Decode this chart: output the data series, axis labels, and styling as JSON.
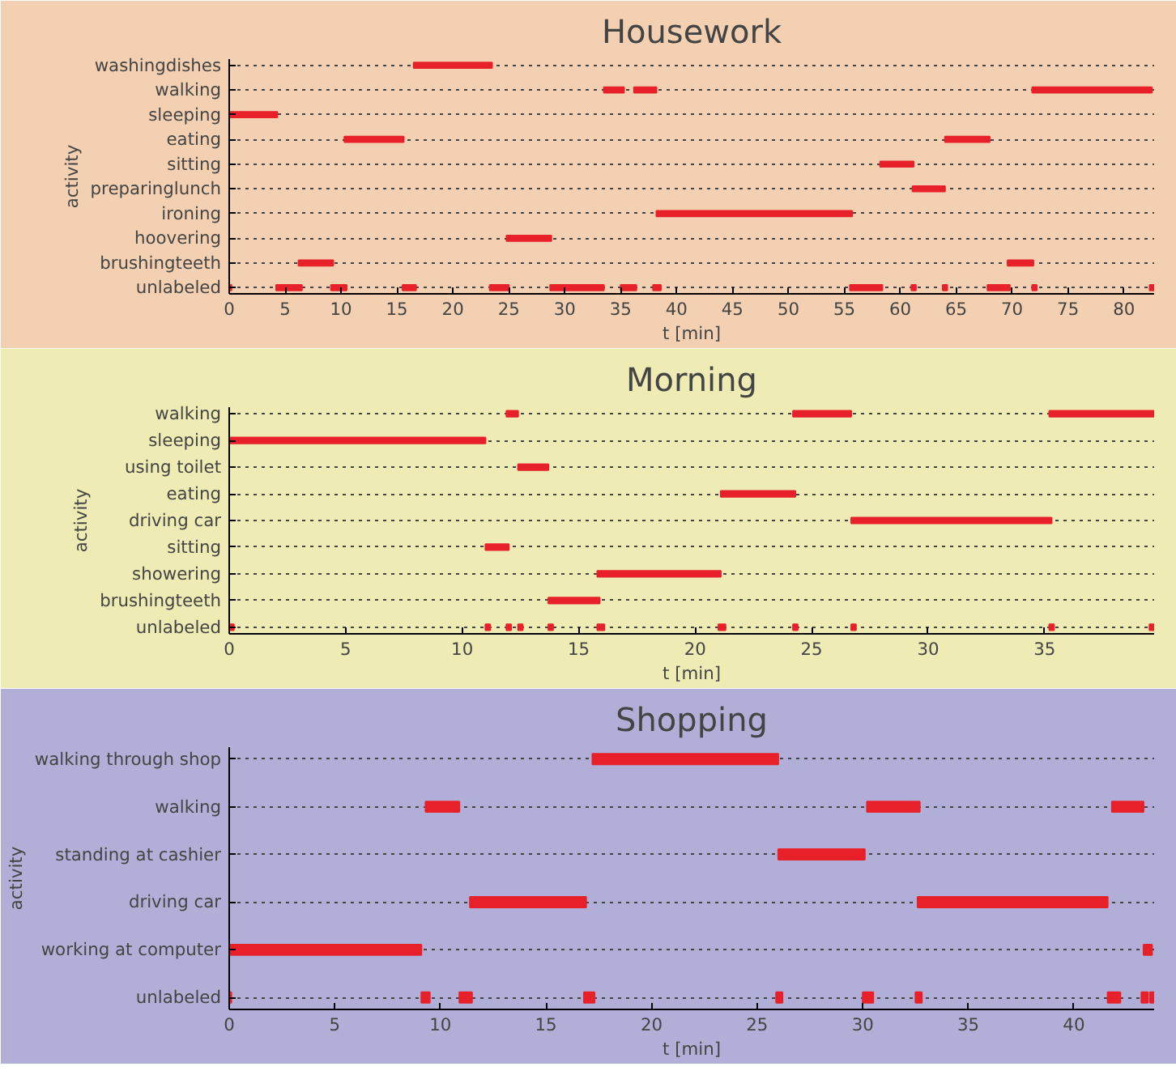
{
  "chart_data": [
    {
      "type": "bar",
      "orientation": "horizontal",
      "title": "Housework",
      "xlabel": "t [min]",
      "ylabel": "activity",
      "grid": "y",
      "categories": [
        "washingdishes",
        "walking",
        "sleeping",
        "eating",
        "sitting",
        "preparinglunch",
        "ironing",
        "hoovering",
        "brushingteeth",
        "unlabeled"
      ],
      "xlim": [
        0,
        82.7
      ],
      "xticks": [
        0,
        5,
        10,
        15,
        20,
        25,
        30,
        35,
        40,
        45,
        50,
        55,
        60,
        65,
        70,
        75,
        80
      ],
      "series": [
        {
          "color": "#e8202a",
          "base": [
            16.5,
            33.5,
            0,
            10.3,
            58.2,
            61.1,
            38.2,
            24.8,
            6.2,
            0
          ],
          "values": [
            7.0,
            1.8,
            4.3,
            5.3,
            3.0,
            2.9,
            17.5,
            4.0,
            3.1,
            0.2
          ]
        },
        {
          "color": "#e8202a",
          "base": [
            null,
            36.2,
            null,
            64.0,
            null,
            null,
            null,
            null,
            69.6,
            4.2
          ],
          "values": [
            null,
            2.0,
            null,
            4.0,
            null,
            null,
            null,
            null,
            2.3,
            2.3
          ]
        },
        {
          "color": "#e8202a",
          "base": [
            null,
            71.8,
            null,
            null,
            null,
            null,
            null,
            null,
            null,
            9.1
          ],
          "values": [
            null,
            10.7,
            null,
            null,
            null,
            null,
            null,
            null,
            null,
            1.4
          ]
        },
        {
          "color": "#e8202a",
          "base": [
            null,
            null,
            null,
            null,
            null,
            null,
            null,
            null,
            null,
            15.5
          ],
          "values": [
            null,
            null,
            null,
            null,
            null,
            null,
            null,
            null,
            null,
            1.2
          ]
        },
        {
          "color": "#e8202a",
          "base": [
            null,
            null,
            null,
            null,
            null,
            null,
            null,
            null,
            null,
            23.3
          ],
          "values": [
            null,
            null,
            null,
            null,
            null,
            null,
            null,
            null,
            null,
            1.7
          ]
        },
        {
          "color": "#e8202a",
          "base": [
            null,
            null,
            null,
            null,
            null,
            null,
            null,
            null,
            null,
            28.7
          ],
          "values": [
            null,
            null,
            null,
            null,
            null,
            null,
            null,
            null,
            null,
            4.8
          ]
        },
        {
          "color": "#e8202a",
          "base": [
            null,
            null,
            null,
            null,
            null,
            null,
            null,
            null,
            null,
            35.0
          ],
          "values": [
            null,
            null,
            null,
            null,
            null,
            null,
            null,
            null,
            null,
            1.4
          ]
        },
        {
          "color": "#e8202a",
          "base": [
            null,
            null,
            null,
            null,
            null,
            null,
            null,
            null,
            null,
            37.9
          ],
          "values": [
            null,
            null,
            null,
            null,
            null,
            null,
            null,
            null,
            null,
            0.7
          ]
        },
        {
          "color": "#e8202a",
          "base": [
            null,
            null,
            null,
            null,
            null,
            null,
            null,
            null,
            null,
            55.5
          ],
          "values": [
            null,
            null,
            null,
            null,
            null,
            null,
            null,
            null,
            null,
            2.9
          ]
        },
        {
          "color": "#e8202a",
          "base": [
            null,
            null,
            null,
            null,
            null,
            null,
            null,
            null,
            null,
            61.0
          ],
          "values": [
            null,
            null,
            null,
            null,
            null,
            null,
            null,
            null,
            null,
            0.4
          ]
        },
        {
          "color": "#e8202a",
          "base": [
            null,
            null,
            null,
            null,
            null,
            null,
            null,
            null,
            null,
            63.8
          ],
          "values": [
            null,
            null,
            null,
            null,
            null,
            null,
            null,
            null,
            null,
            0.4
          ]
        },
        {
          "color": "#e8202a",
          "base": [
            null,
            null,
            null,
            null,
            null,
            null,
            null,
            null,
            null,
            67.8
          ],
          "values": [
            null,
            null,
            null,
            null,
            null,
            null,
            null,
            null,
            null,
            2.0
          ]
        },
        {
          "color": "#e8202a",
          "base": [
            null,
            null,
            null,
            null,
            null,
            null,
            null,
            null,
            null,
            71.8
          ],
          "values": [
            null,
            null,
            null,
            null,
            null,
            null,
            null,
            null,
            null,
            0.4
          ]
        },
        {
          "color": "#e8202a",
          "base": [
            null,
            null,
            null,
            null,
            null,
            null,
            null,
            null,
            null,
            82.3
          ],
          "values": [
            null,
            null,
            null,
            null,
            null,
            null,
            null,
            null,
            null,
            0.4
          ]
        }
      ]
    },
    {
      "type": "bar",
      "orientation": "horizontal",
      "title": "Morning",
      "xlabel": "t [min]",
      "ylabel": "activity",
      "grid": "y",
      "categories": [
        "walking",
        "sleeping",
        "using toilet",
        "eating",
        "driving car",
        "sitting",
        "showering",
        "brushingteeth",
        "unlabeled"
      ],
      "xlim": [
        0,
        39.7
      ],
      "xticks": [
        0,
        5,
        10,
        15,
        20,
        25,
        30,
        35
      ],
      "series": [
        {
          "color": "#e8202a",
          "base": [
            11.9,
            0,
            12.4,
            21.1,
            26.7,
            11.0,
            15.8,
            13.7,
            0
          ],
          "values": [
            0.5,
            11.0,
            1.3,
            3.2,
            8.6,
            1.0,
            5.3,
            2.2,
            0.2
          ]
        },
        {
          "color": "#e8202a",
          "base": [
            24.2,
            null,
            null,
            null,
            null,
            null,
            null,
            null,
            11.0
          ],
          "values": [
            2.5,
            null,
            null,
            null,
            null,
            null,
            null,
            null,
            0.2
          ]
        },
        {
          "color": "#e8202a",
          "base": [
            35.2,
            null,
            null,
            null,
            null,
            null,
            null,
            null,
            11.9
          ],
          "values": [
            4.5,
            null,
            null,
            null,
            null,
            null,
            null,
            null,
            0.2
          ]
        },
        {
          "color": "#e8202a",
          "base": [
            null,
            null,
            null,
            null,
            null,
            null,
            null,
            null,
            12.4
          ],
          "values": [
            null,
            null,
            null,
            null,
            null,
            null,
            null,
            null,
            0.2
          ]
        },
        {
          "color": "#e8202a",
          "base": [
            null,
            null,
            null,
            null,
            null,
            null,
            null,
            null,
            13.7
          ],
          "values": [
            null,
            null,
            null,
            null,
            null,
            null,
            null,
            null,
            0.2
          ]
        },
        {
          "color": "#e8202a",
          "base": [
            null,
            null,
            null,
            null,
            null,
            null,
            null,
            null,
            15.8
          ],
          "values": [
            null,
            null,
            null,
            null,
            null,
            null,
            null,
            null,
            0.3
          ]
        },
        {
          "color": "#e8202a",
          "base": [
            null,
            null,
            null,
            null,
            null,
            null,
            null,
            null,
            21.0
          ],
          "values": [
            null,
            null,
            null,
            null,
            null,
            null,
            null,
            null,
            0.3
          ]
        },
        {
          "color": "#e8202a",
          "base": [
            null,
            null,
            null,
            null,
            null,
            null,
            null,
            null,
            24.2
          ],
          "values": [
            null,
            null,
            null,
            null,
            null,
            null,
            null,
            null,
            0.2
          ]
        },
        {
          "color": "#e8202a",
          "base": [
            null,
            null,
            null,
            null,
            null,
            null,
            null,
            null,
            26.7
          ],
          "values": [
            null,
            null,
            null,
            null,
            null,
            null,
            null,
            null,
            0.2
          ]
        },
        {
          "color": "#e8202a",
          "base": [
            null,
            null,
            null,
            null,
            null,
            null,
            null,
            null,
            35.2
          ],
          "values": [
            null,
            null,
            null,
            null,
            null,
            null,
            null,
            null,
            0.2
          ]
        },
        {
          "color": "#e8202a",
          "base": [
            null,
            null,
            null,
            null,
            null,
            null,
            null,
            null,
            39.5
          ],
          "values": [
            null,
            null,
            null,
            null,
            null,
            null,
            null,
            null,
            0.2
          ]
        }
      ]
    },
    {
      "type": "bar",
      "orientation": "horizontal",
      "title": "Shopping",
      "xlabel": "t [min]",
      "ylabel": "activity",
      "grid": "y",
      "categories": [
        "walking through shop",
        "walking",
        "standing at cashier",
        "driving car",
        "working at computer",
        "unlabeled"
      ],
      "xlim": [
        0,
        43.8
      ],
      "xticks": [
        0,
        5,
        10,
        15,
        20,
        25,
        30,
        35,
        40
      ],
      "series": [
        {
          "color": "#e8202a",
          "base": [
            17.2,
            9.3,
            26.0,
            11.4,
            0,
            0
          ],
          "values": [
            8.8,
            1.6,
            4.1,
            5.5,
            9.1,
            0.1
          ]
        },
        {
          "color": "#e8202a",
          "base": [
            null,
            30.2,
            null,
            32.6,
            43.3,
            9.1
          ],
          "values": [
            null,
            2.5,
            null,
            9.0,
            0.4,
            0.4
          ]
        },
        {
          "color": "#e8202a",
          "base": [
            null,
            41.8,
            null,
            null,
            null,
            10.9
          ],
          "values": [
            null,
            1.5,
            null,
            null,
            null,
            0.6
          ]
        },
        {
          "color": "#e8202a",
          "base": [
            null,
            null,
            null,
            null,
            null,
            16.8
          ],
          "values": [
            null,
            null,
            null,
            null,
            null,
            0.5
          ]
        },
        {
          "color": "#e8202a",
          "base": [
            null,
            null,
            null,
            null,
            null,
            25.9
          ],
          "values": [
            null,
            null,
            null,
            null,
            null,
            0.3
          ]
        },
        {
          "color": "#e8202a",
          "base": [
            null,
            null,
            null,
            null,
            null,
            30.0
          ],
          "values": [
            null,
            null,
            null,
            null,
            null,
            0.5
          ]
        },
        {
          "color": "#e8202a",
          "base": [
            null,
            null,
            null,
            null,
            null,
            32.5
          ],
          "values": [
            null,
            null,
            null,
            null,
            null,
            0.3
          ]
        },
        {
          "color": "#e8202a",
          "base": [
            null,
            null,
            null,
            null,
            null,
            41.6
          ],
          "values": [
            null,
            null,
            null,
            null,
            null,
            0.6
          ]
        },
        {
          "color": "#e8202a",
          "base": [
            null,
            null,
            null,
            null,
            null,
            43.2
          ],
          "values": [
            null,
            null,
            null,
            null,
            null,
            0.3
          ]
        },
        {
          "color": "#e8202a",
          "base": [
            null,
            null,
            null,
            null,
            null,
            43.6
          ],
          "values": [
            null,
            null,
            null,
            null,
            null,
            0.2
          ]
        }
      ]
    }
  ]
}
